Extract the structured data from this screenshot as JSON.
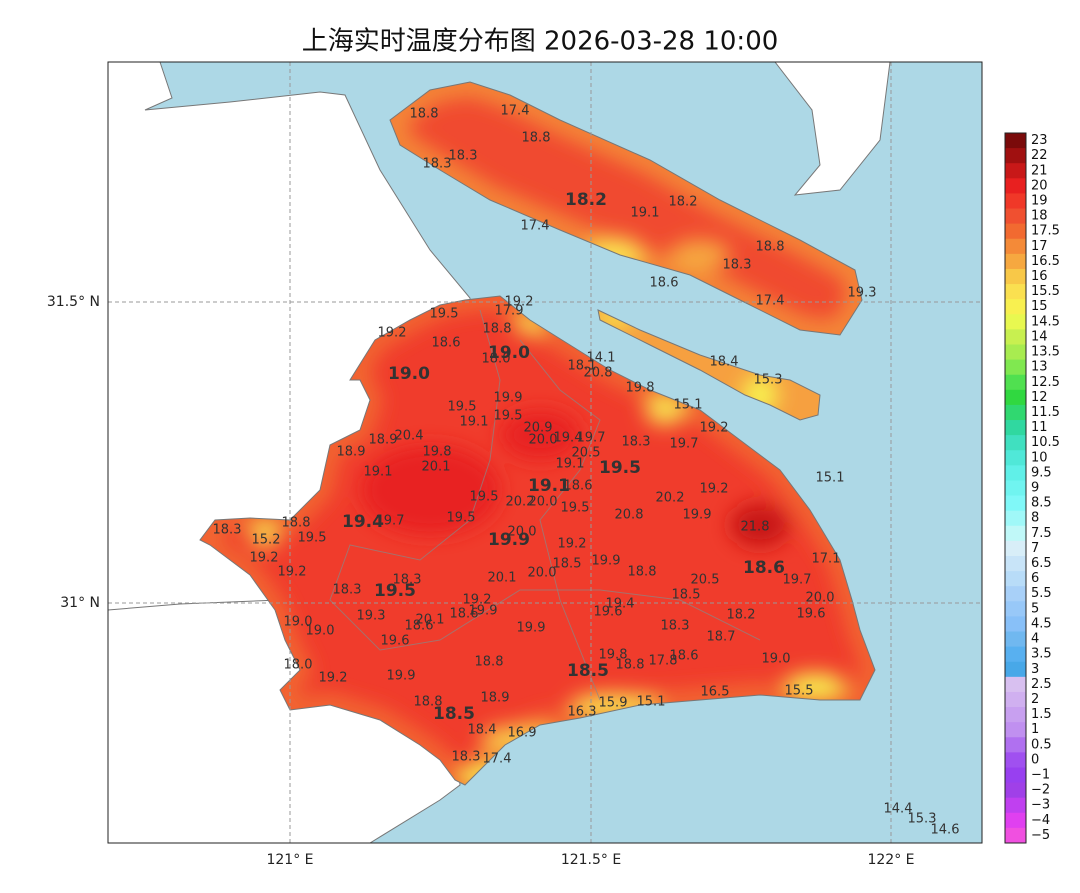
{
  "title": "上海实时温度分布图 2026-03-28 10:00",
  "x_ticks": [
    "121° E",
    "121.5° E",
    "122° E"
  ],
  "y_ticks": [
    "31.5° N",
    "31° N"
  ],
  "district_labels": [
    "18.2",
    "19.0",
    "19.0",
    "19.5",
    "19.1",
    "19.4",
    "19.9",
    "18.6",
    "19.5",
    "18.5",
    "18.5"
  ],
  "station_labels": [
    "18.8",
    "17.4",
    "18.8",
    "18.3",
    "18.3",
    "19.1",
    "18.2",
    "17.4",
    "18.8",
    "18.3",
    "18.6",
    "17.4",
    "19.3",
    "18.4",
    "15.3",
    "19.2",
    "17.9",
    "19.5",
    "19.2",
    "18.8",
    "18.6",
    "18.0",
    "14.1",
    "18.1",
    "20.8",
    "19.8",
    "19.9",
    "19.5",
    "15.1",
    "19.5",
    "19.1",
    "19.2",
    "20.9",
    "20.0",
    "19.4",
    "19.7",
    "18.3",
    "19.7",
    "18.9",
    "20.4",
    "18.9",
    "19.8",
    "20.5",
    "20.1",
    "19.1",
    "19.1",
    "15.1",
    "18.6",
    "19.2",
    "19.5",
    "20.2",
    "20.2",
    "20.0",
    "19.5",
    "19.9",
    "20.8",
    "21.8",
    "18.3",
    "18.8",
    "19.7",
    "19.5",
    "19.5",
    "15.2",
    "20.0",
    "19.2",
    "17.1",
    "19.2",
    "19.9",
    "18.5",
    "19.2",
    "20.0",
    "18.8",
    "20.1",
    "18.3",
    "20.5",
    "19.7",
    "18.3",
    "18.5",
    "19.2",
    "20.0",
    "19.4",
    "19.9",
    "18.6",
    "19.6",
    "18.2",
    "19.6",
    "19.3",
    "20.1",
    "18.6",
    "19.0",
    "19.0",
    "19.9",
    "18.3",
    "18.7",
    "19.6",
    "19.8",
    "19.0",
    "18.8",
    "18.6",
    "18.8",
    "17.8",
    "18.0",
    "19.2",
    "19.9",
    "16.5",
    "15.5",
    "18.9",
    "15.9",
    "15.1",
    "18.8",
    "16.3",
    "18.4",
    "16.9",
    "18.3",
    "17.4",
    "14.4",
    "15.3",
    "14.6"
  ],
  "colorbar": {
    "levels": [
      {
        "label": "23",
        "color": "#7a0a0a"
      },
      {
        "label": "22",
        "color": "#a01010"
      },
      {
        "label": "21",
        "color": "#c81818"
      },
      {
        "label": "20",
        "color": "#e82020"
      },
      {
        "label": "19",
        "color": "#f03828"
      },
      {
        "label": "18",
        "color": "#f05030"
      },
      {
        "label": "17.5",
        "color": "#f26a30"
      },
      {
        "label": "17",
        "color": "#f48a38"
      },
      {
        "label": "16.5",
        "color": "#f6a840"
      },
      {
        "label": "16",
        "color": "#f8c848"
      },
      {
        "label": "15.5",
        "color": "#fae050"
      },
      {
        "label": "15",
        "color": "#f8f050"
      },
      {
        "label": "14.5",
        "color": "#e8f850"
      },
      {
        "label": "14",
        "color": "#c8f050"
      },
      {
        "label": "13.5",
        "color": "#a8ec50"
      },
      {
        "label": "13",
        "color": "#80e850"
      },
      {
        "label": "12.5",
        "color": "#50e050"
      },
      {
        "label": "12",
        "color": "#30d840"
      },
      {
        "label": "11.5",
        "color": "#30d870"
      },
      {
        "label": "11",
        "color": "#30d8a0"
      },
      {
        "label": "10.5",
        "color": "#40e0c0"
      },
      {
        "label": "10",
        "color": "#50e8d8"
      },
      {
        "label": "9.5",
        "color": "#60f0e8"
      },
      {
        "label": "9",
        "color": "#70f4f0"
      },
      {
        "label": "8.5",
        "color": "#80f8f8"
      },
      {
        "label": "8",
        "color": "#a0f8f8"
      },
      {
        "label": "7.5",
        "color": "#c0f8f8"
      },
      {
        "label": "7",
        "color": "#d8eef8"
      },
      {
        "label": "6.5",
        "color": "#c8e4f8"
      },
      {
        "label": "6",
        "color": "#b8dcf8"
      },
      {
        "label": "5.5",
        "color": "#a8d0f8"
      },
      {
        "label": "5",
        "color": "#98c8f8"
      },
      {
        "label": "4.5",
        "color": "#88c0f8"
      },
      {
        "label": "4",
        "color": "#70b8f0"
      },
      {
        "label": "3.5",
        "color": "#58b0f0"
      },
      {
        "label": "3",
        "color": "#48a8e8"
      },
      {
        "label": "2.5",
        "color": "#d8c0f0"
      },
      {
        "label": "2",
        "color": "#d0b0f0"
      },
      {
        "label": "1.5",
        "color": "#c8a0f0"
      },
      {
        "label": "1",
        "color": "#c090f0"
      },
      {
        "label": "0.5",
        "color": "#b070f0"
      },
      {
        "label": "0",
        "color": "#a050f0"
      },
      {
        "label": "−1",
        "color": "#9840f0"
      },
      {
        "label": "−2",
        "color": "#a040e8"
      },
      {
        "label": "−3",
        "color": "#c040f0"
      },
      {
        "label": "−4",
        "color": "#e040f0"
      },
      {
        "label": "−5",
        "color": "#f050e0"
      }
    ]
  }
}
